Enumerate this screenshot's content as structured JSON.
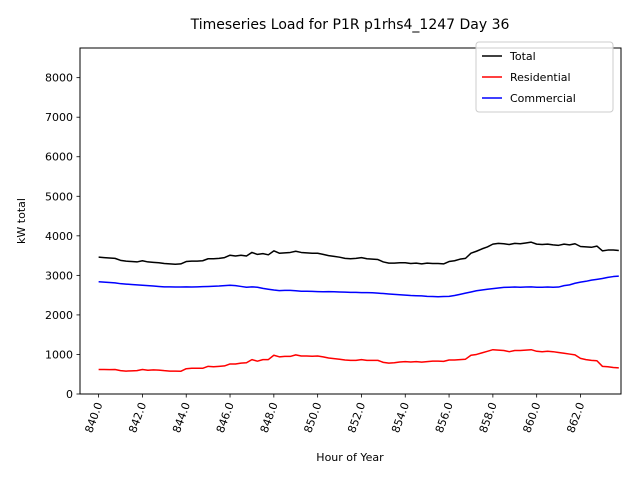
{
  "chart_data": {
    "type": "line",
    "title": "Timeseries Load for P1R p1rhs4_1247  Day 36",
    "xlabel": "Hour of Year",
    "ylabel": "kW total",
    "xlim": [
      839.15,
      863.85
    ],
    "ylim": [
      0,
      8750
    ],
    "xticks": [
      840.0,
      842.0,
      844.0,
      846.0,
      848.0,
      850.0,
      852.0,
      854.0,
      856.0,
      858.0,
      860.0,
      862.0
    ],
    "xtick_labels": [
      "840.0",
      "842.0",
      "844.0",
      "846.0",
      "848.0",
      "850.0",
      "852.0",
      "854.0",
      "856.0",
      "858.0",
      "860.0",
      "862.0"
    ],
    "yticks": [
      0,
      1000,
      2000,
      3000,
      4000,
      5000,
      6000,
      7000,
      8000
    ],
    "ytick_labels": [
      "0",
      "1000",
      "2000",
      "3000",
      "4000",
      "5000",
      "6000",
      "7000",
      "8000"
    ],
    "legend_position": "top-right",
    "grid": false,
    "series": [
      {
        "name": "Total",
        "color": "#000000",
        "x": [
          840.0,
          840.25,
          840.5,
          840.75,
          841.0,
          841.25,
          841.5,
          841.75,
          842.0,
          842.25,
          842.5,
          842.75,
          843.0,
          843.25,
          843.5,
          843.75,
          844.0,
          844.25,
          844.5,
          844.75,
          845.0,
          845.25,
          845.5,
          845.75,
          846.0,
          846.25,
          846.5,
          846.75,
          847.0,
          847.25,
          847.5,
          847.75,
          848.0,
          848.25,
          848.5,
          848.75,
          849.0,
          849.25,
          849.5,
          849.75,
          850.0,
          850.25,
          850.5,
          850.75,
          851.0,
          851.25,
          851.5,
          851.75,
          852.0,
          852.25,
          852.5,
          852.75,
          853.0,
          853.25,
          853.5,
          853.75,
          854.0,
          854.25,
          854.5,
          854.75,
          855.0,
          855.25,
          855.5,
          855.75,
          856.0,
          856.25,
          856.5,
          856.75,
          857.0,
          857.25,
          857.5,
          857.75,
          858.0,
          858.25,
          858.5,
          858.75,
          859.0,
          859.25,
          859.5,
          859.75,
          860.0,
          860.25,
          860.5,
          860.75,
          861.0,
          861.25,
          861.5,
          861.75,
          862.0,
          862.25,
          862.5,
          862.75,
          863.0,
          863.25,
          863.5,
          863.75
        ],
        "values": [
          3460,
          3450,
          3440,
          3430,
          3380,
          3360,
          3350,
          3340,
          3370,
          3340,
          3330,
          3320,
          3300,
          3290,
          3280,
          3290,
          3350,
          3360,
          3360,
          3370,
          3420,
          3420,
          3430,
          3450,
          3510,
          3490,
          3510,
          3490,
          3580,
          3530,
          3550,
          3520,
          3620,
          3560,
          3570,
          3580,
          3610,
          3580,
          3570,
          3560,
          3560,
          3530,
          3500,
          3480,
          3460,
          3430,
          3420,
          3430,
          3450,
          3420,
          3410,
          3400,
          3340,
          3310,
          3310,
          3320,
          3320,
          3300,
          3310,
          3290,
          3310,
          3300,
          3300,
          3290,
          3350,
          3370,
          3410,
          3430,
          3560,
          3610,
          3670,
          3720,
          3790,
          3810,
          3800,
          3780,
          3810,
          3800,
          3820,
          3840,
          3790,
          3780,
          3790,
          3770,
          3760,
          3790,
          3770,
          3800,
          3730,
          3720,
          3710,
          3740,
          3620,
          3640,
          3640,
          3630
        ]
      },
      {
        "name": "Residential",
        "color": "#ff0000",
        "x": [
          840.0,
          840.25,
          840.5,
          840.75,
          841.0,
          841.25,
          841.5,
          841.75,
          842.0,
          842.25,
          842.5,
          842.75,
          843.0,
          843.25,
          843.5,
          843.75,
          844.0,
          844.25,
          844.5,
          844.75,
          845.0,
          845.25,
          845.5,
          845.75,
          846.0,
          846.25,
          846.5,
          846.75,
          847.0,
          847.25,
          847.5,
          847.75,
          848.0,
          848.25,
          848.5,
          848.75,
          849.0,
          849.25,
          849.5,
          849.75,
          850.0,
          850.25,
          850.5,
          850.75,
          851.0,
          851.25,
          851.5,
          851.75,
          852.0,
          852.25,
          852.5,
          852.75,
          853.0,
          853.25,
          853.5,
          853.75,
          854.0,
          854.25,
          854.5,
          854.75,
          855.0,
          855.25,
          855.5,
          855.75,
          856.0,
          856.25,
          856.5,
          856.75,
          857.0,
          857.25,
          857.5,
          857.75,
          858.0,
          858.25,
          858.5,
          858.75,
          859.0,
          859.25,
          859.5,
          859.75,
          860.0,
          860.25,
          860.5,
          860.75,
          861.0,
          861.25,
          861.5,
          861.75,
          862.0,
          862.25,
          862.5,
          862.75,
          863.0,
          863.25,
          863.5,
          863.75
        ],
        "values": [
          620,
          620,
          615,
          620,
          590,
          580,
          585,
          590,
          620,
          600,
          610,
          605,
          590,
          580,
          580,
          575,
          640,
          650,
          650,
          650,
          700,
          690,
          700,
          710,
          760,
          760,
          780,
          790,
          870,
          830,
          870,
          870,
          980,
          940,
          950,
          950,
          990,
          960,
          960,
          955,
          960,
          940,
          910,
          895,
          880,
          860,
          850,
          850,
          870,
          850,
          850,
          850,
          800,
          780,
          790,
          810,
          820,
          810,
          820,
          805,
          820,
          830,
          830,
          825,
          860,
          860,
          870,
          880,
          980,
          1000,
          1040,
          1080,
          1120,
          1110,
          1100,
          1070,
          1100,
          1100,
          1110,
          1120,
          1080,
          1070,
          1080,
          1070,
          1050,
          1030,
          1010,
          990,
          900,
          870,
          850,
          840,
          700,
          690,
          670,
          660
        ]
      },
      {
        "name": "Commercial",
        "color": "#0000ff",
        "x": [
          840.0,
          840.25,
          840.5,
          840.75,
          841.0,
          841.25,
          841.5,
          841.75,
          842.0,
          842.25,
          842.5,
          842.75,
          843.0,
          843.25,
          843.5,
          843.75,
          844.0,
          844.25,
          844.5,
          844.75,
          845.0,
          845.25,
          845.5,
          845.75,
          846.0,
          846.25,
          846.5,
          846.75,
          847.0,
          847.25,
          847.5,
          847.75,
          848.0,
          848.25,
          848.5,
          848.75,
          849.0,
          849.25,
          849.5,
          849.75,
          850.0,
          850.25,
          850.5,
          850.75,
          851.0,
          851.25,
          851.5,
          851.75,
          852.0,
          852.25,
          852.5,
          852.75,
          853.0,
          853.25,
          853.5,
          853.75,
          854.0,
          854.25,
          854.5,
          854.75,
          855.0,
          855.25,
          855.5,
          855.75,
          856.0,
          856.25,
          856.5,
          856.75,
          857.0,
          857.25,
          857.5,
          857.75,
          858.0,
          858.25,
          858.5,
          858.75,
          859.0,
          859.25,
          859.5,
          859.75,
          860.0,
          860.25,
          860.5,
          860.75,
          861.0,
          861.25,
          861.5,
          861.75,
          862.0,
          862.25,
          862.5,
          862.75,
          863.0,
          863.25,
          863.5,
          863.75
        ],
        "values": [
          2840,
          2830,
          2820,
          2810,
          2790,
          2780,
          2770,
          2760,
          2750,
          2740,
          2730,
          2720,
          2710,
          2710,
          2705,
          2705,
          2710,
          2705,
          2710,
          2715,
          2720,
          2725,
          2730,
          2740,
          2750,
          2740,
          2720,
          2700,
          2710,
          2700,
          2670,
          2650,
          2630,
          2615,
          2620,
          2620,
          2610,
          2600,
          2600,
          2595,
          2590,
          2585,
          2590,
          2585,
          2580,
          2575,
          2570,
          2570,
          2565,
          2565,
          2560,
          2550,
          2540,
          2530,
          2520,
          2510,
          2500,
          2490,
          2485,
          2480,
          2470,
          2465,
          2460,
          2465,
          2470,
          2490,
          2520,
          2550,
          2580,
          2610,
          2630,
          2650,
          2665,
          2680,
          2695,
          2700,
          2705,
          2700,
          2705,
          2710,
          2700,
          2700,
          2705,
          2700,
          2705,
          2740,
          2760,
          2800,
          2830,
          2850,
          2880,
          2900,
          2920,
          2950,
          2970,
          2980
        ]
      }
    ]
  }
}
